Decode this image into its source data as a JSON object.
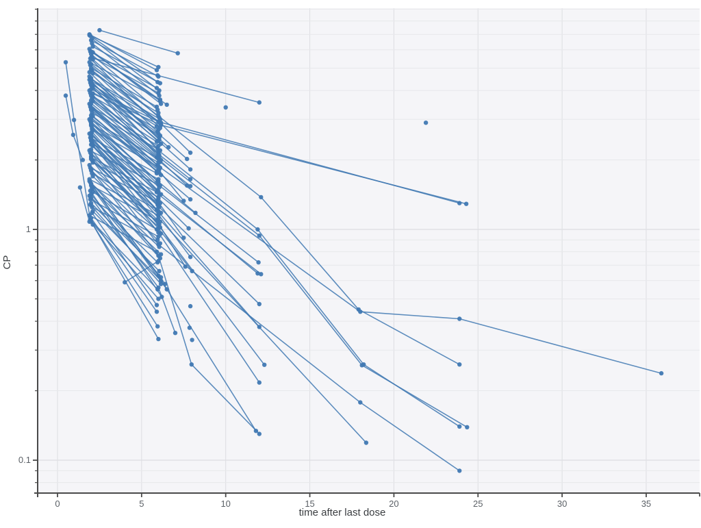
{
  "chart_data": {
    "type": "line",
    "title": "",
    "xlabel": "time after last dose",
    "ylabel": "CP",
    "x_axis": {
      "ticks": [
        0,
        5,
        10,
        15,
        20,
        25,
        30,
        35
      ],
      "tick_labels": [
        "0",
        "5",
        "10",
        "15",
        "20",
        "25",
        "30",
        "35"
      ],
      "range": [
        -1.2,
        38.1
      ],
      "grid": true
    },
    "y_axis": {
      "scale": "log",
      "major_ticks": [
        1,
        0.1
      ],
      "major_tick_labels": [
        "1",
        "0.1"
      ],
      "minor_ticks": [
        9,
        8,
        7,
        6,
        5,
        4,
        3,
        2,
        0.9,
        0.8,
        0.7,
        0.6,
        0.5,
        0.4,
        0.3,
        0.2,
        0.09,
        0.08
      ],
      "range": [
        0.072,
        9.1
      ],
      "grid": true
    },
    "style": {
      "series_color": "#4179b3",
      "plot_background": "#f5f5f8",
      "grid_minor_color": "#e7e8eb",
      "grid_major_color": "#dddee2",
      "axis_color": "#4a4a4a",
      "tick_label_color": "#5b6066",
      "axis_title_color": "#3a3d40"
    },
    "legend": null,
    "series": [
      [
        [
          1.9,
          7.0
        ],
        [
          5.9,
          4.9
        ]
      ],
      [
        [
          1.95,
          6.9
        ],
        [
          5.95,
          4.35
        ]
      ],
      [
        [
          2.0,
          6.6
        ],
        [
          6.0,
          4.6
        ]
      ],
      [
        [
          2.05,
          6.4
        ],
        [
          6.05,
          3.8
        ]
      ],
      [
        [
          2.1,
          6.2
        ],
        [
          6.1,
          4.3
        ]
      ],
      [
        [
          1.9,
          6.05
        ],
        [
          6.15,
          3.5
        ]
      ],
      [
        [
          1.95,
          5.9
        ],
        [
          5.9,
          4.1
        ]
      ],
      [
        [
          2.0,
          5.75
        ],
        [
          5.95,
          3.3
        ]
      ],
      [
        [
          2.05,
          5.6
        ],
        [
          6.0,
          3.9
        ]
      ],
      [
        [
          2.1,
          5.45
        ],
        [
          6.05,
          3.05
        ]
      ],
      [
        [
          1.9,
          5.3
        ],
        [
          6.1,
          3.65
        ]
      ],
      [
        [
          1.95,
          5.15
        ],
        [
          6.15,
          2.85
        ]
      ],
      [
        [
          2.0,
          5.0
        ],
        [
          5.9,
          3.4
        ]
      ],
      [
        [
          2.05,
          4.9
        ],
        [
          5.95,
          2.65
        ]
      ],
      [
        [
          2.1,
          4.75
        ],
        [
          6.0,
          3.2
        ]
      ],
      [
        [
          1.9,
          4.6
        ],
        [
          6.05,
          2.5
        ]
      ],
      [
        [
          1.95,
          4.5
        ],
        [
          6.1,
          3.0
        ]
      ],
      [
        [
          2.0,
          4.35
        ],
        [
          6.15,
          2.35
        ]
      ],
      [
        [
          2.05,
          4.25
        ],
        [
          5.9,
          2.8
        ]
      ],
      [
        [
          2.1,
          4.1
        ],
        [
          5.95,
          2.25
        ]
      ],
      [
        [
          1.9,
          4.0
        ],
        [
          6.0,
          2.7
        ]
      ],
      [
        [
          1.95,
          3.9
        ],
        [
          6.05,
          2.1
        ]
      ],
      [
        [
          2.0,
          3.8
        ],
        [
          6.1,
          2.55
        ]
      ],
      [
        [
          2.05,
          3.7
        ],
        [
          6.15,
          2.0
        ]
      ],
      [
        [
          2.1,
          3.6
        ],
        [
          5.9,
          2.4
        ]
      ],
      [
        [
          1.9,
          3.5
        ],
        [
          5.95,
          1.9
        ]
      ],
      [
        [
          1.95,
          3.4
        ],
        [
          6.0,
          2.3
        ]
      ],
      [
        [
          2.0,
          3.3
        ],
        [
          6.05,
          1.82
        ]
      ],
      [
        [
          2.05,
          3.2
        ],
        [
          6.1,
          2.2
        ]
      ],
      [
        [
          2.1,
          3.1
        ],
        [
          6.15,
          1.72
        ]
      ],
      [
        [
          1.9,
          3.0
        ],
        [
          5.9,
          2.05
        ]
      ],
      [
        [
          1.95,
          2.95
        ],
        [
          5.95,
          1.62
        ]
      ],
      [
        [
          2.0,
          2.85
        ],
        [
          6.0,
          1.95
        ]
      ],
      [
        [
          2.05,
          2.75
        ],
        [
          6.05,
          1.52
        ]
      ],
      [
        [
          2.1,
          2.7
        ],
        [
          6.1,
          1.85
        ]
      ],
      [
        [
          1.9,
          2.6
        ],
        [
          6.15,
          1.42
        ]
      ],
      [
        [
          1.95,
          2.5
        ],
        [
          5.9,
          1.75
        ]
      ],
      [
        [
          2.0,
          2.45
        ],
        [
          5.95,
          1.33
        ]
      ],
      [
        [
          2.05,
          2.35
        ],
        [
          6.0,
          1.65
        ]
      ],
      [
        [
          2.1,
          2.3
        ],
        [
          6.05,
          1.25
        ]
      ],
      [
        [
          1.9,
          2.2
        ],
        [
          6.1,
          1.55
        ]
      ],
      [
        [
          1.95,
          2.15
        ],
        [
          6.15,
          1.18
        ]
      ],
      [
        [
          2.0,
          2.05
        ],
        [
          5.9,
          1.45
        ]
      ],
      [
        [
          2.05,
          2.0
        ],
        [
          5.95,
          1.1
        ]
      ],
      [
        [
          2.1,
          1.95
        ],
        [
          6.0,
          1.38
        ]
      ],
      [
        [
          1.9,
          1.9
        ],
        [
          6.05,
          1.02
        ]
      ],
      [
        [
          1.95,
          1.85
        ],
        [
          6.1,
          1.3
        ]
      ],
      [
        [
          2.0,
          1.8
        ],
        [
          6.15,
          0.96
        ]
      ],
      [
        [
          2.05,
          1.75
        ],
        [
          5.9,
          1.22
        ]
      ],
      [
        [
          2.1,
          1.7
        ],
        [
          5.95,
          0.9
        ]
      ],
      [
        [
          1.9,
          1.65
        ],
        [
          6.0,
          1.15
        ]
      ],
      [
        [
          1.95,
          1.6
        ],
        [
          6.05,
          0.84
        ]
      ],
      [
        [
          2.0,
          1.55
        ],
        [
          6.1,
          1.08
        ]
      ],
      [
        [
          2.05,
          1.5
        ],
        [
          6.15,
          0.78
        ]
      ],
      [
        [
          2.1,
          1.45
        ],
        [
          5.9,
          1.0
        ]
      ],
      [
        [
          1.9,
          1.4
        ],
        [
          5.95,
          0.72
        ]
      ],
      [
        [
          1.95,
          1.35
        ],
        [
          6.0,
          0.93
        ]
      ],
      [
        [
          2.0,
          1.3
        ],
        [
          6.05,
          0.66
        ]
      ],
      [
        [
          2.05,
          1.25
        ],
        [
          6.1,
          0.87
        ]
      ],
      [
        [
          2.1,
          1.2
        ],
        [
          6.15,
          0.6
        ]
      ],
      [
        [
          1.9,
          1.15
        ],
        [
          5.9,
          0.8
        ]
      ],
      [
        [
          1.95,
          1.1
        ],
        [
          5.95,
          0.55
        ]
      ],
      [
        [
          2.0,
          1.08
        ],
        [
          6.0,
          0.5
        ]
      ],
      [
        [
          2.05,
          6.7
        ],
        [
          6.05,
          4.0
        ]
      ],
      [
        [
          2.1,
          5.85
        ],
        [
          6.1,
          3.6
        ]
      ],
      [
        [
          1.9,
          4.45
        ],
        [
          6.15,
          2.9
        ]
      ],
      [
        [
          1.95,
          3.45
        ],
        [
          5.9,
          1.78
        ]
      ],
      [
        [
          2.0,
          2.9
        ],
        [
          5.95,
          1.48
        ]
      ],
      [
        [
          2.05,
          2.4
        ],
        [
          6.0,
          1.2
        ]
      ],
      [
        [
          2.1,
          1.98
        ],
        [
          6.05,
          1.05
        ]
      ],
      [
        [
          1.9,
          1.62
        ],
        [
          6.1,
          0.75
        ]
      ],
      [
        [
          1.95,
          1.28
        ],
        [
          6.15,
          0.58
        ]
      ],
      [
        [
          2.0,
          1.12
        ],
        [
          5.9,
          0.44
        ]
      ],
      [
        [
          2.05,
          2.65
        ],
        [
          5.95,
          1.28
        ]
      ],
      [
        [
          2.1,
          3.75
        ],
        [
          6.0,
          2.15
        ]
      ],
      [
        [
          1.9,
          4.8
        ],
        [
          6.05,
          2.45
        ]
      ],
      [
        [
          1.95,
          5.5
        ],
        [
          6.1,
          2.75
        ]
      ],
      [
        [
          2.0,
          1.42
        ],
        [
          6.15,
          0.62
        ]
      ],
      [
        [
          2.05,
          1.18
        ],
        [
          5.9,
          0.47
        ]
      ],
      [
        [
          2.1,
          1.05
        ],
        [
          5.95,
          0.38
        ]
      ],
      [
        [
          1.95,
          1.1
        ],
        [
          6.0,
          0.335
        ]
      ],
      [
        [
          0.49,
          5.3
        ],
        [
          0.98,
          2.98
        ],
        [
          1.95,
          1.1
        ]
      ],
      [
        [
          0.49,
          3.8
        ],
        [
          0.93,
          2.57
        ],
        [
          1.5,
          2.0
        ]
      ],
      [
        [
          1.34,
          1.52
        ],
        [
          1.9,
          1.08
        ]
      ],
      [
        [
          2.5,
          7.3
        ],
        [
          7.15,
          5.8
        ]
      ],
      [
        [
          1.9,
          6.95
        ],
        [
          6.0,
          5.05
        ]
      ],
      [
        [
          2.0,
          5.55
        ],
        [
          5.95,
          4.65
        ],
        [
          12.0,
          3.55
        ]
      ],
      [
        [
          2.0,
          4.05
        ],
        [
          6.0,
          2.93
        ],
        [
          23.9,
          1.3
        ]
      ],
      [
        [
          2.1,
          3.88
        ],
        [
          6.15,
          2.83
        ],
        [
          24.3,
          1.29
        ]
      ],
      [
        [
          2.0,
          5.2
        ],
        [
          6.0,
          3.1
        ],
        [
          12.1,
          1.38
        ],
        [
          17.9,
          0.45
        ],
        [
          23.9,
          0.26
        ]
      ],
      [
        [
          2.0,
          4.4
        ],
        [
          6.0,
          2.2
        ],
        [
          11.9,
          1.0
        ],
        [
          18.2,
          0.26
        ],
        [
          23.9,
          0.14
        ]
      ],
      [
        [
          2.05,
          4.15
        ],
        [
          6.05,
          2.05
        ],
        [
          12.0,
          0.94
        ],
        [
          18.1,
          0.258
        ],
        [
          24.35,
          0.139
        ]
      ],
      [
        [
          2.0,
          3.35
        ],
        [
          6.0,
          1.88
        ],
        [
          18.0,
          0.44
        ],
        [
          23.9,
          0.41
        ],
        [
          35.9,
          0.238
        ]
      ],
      [
        [
          2.0,
          2.42
        ],
        [
          6.0,
          1.12
        ],
        [
          18.35,
          0.119
        ]
      ],
      [
        [
          2.0,
          2.62
        ],
        [
          6.0,
          1.26
        ],
        [
          12.0,
          0.475
        ]
      ],
      [
        [
          2.0,
          2.52
        ],
        [
          6.05,
          1.18
        ],
        [
          12.0,
          0.378
        ]
      ],
      [
        [
          2.0,
          2.22
        ],
        [
          6.0,
          0.97
        ],
        [
          12.0,
          0.217
        ]
      ],
      [
        [
          2.1,
          2.32
        ],
        [
          6.1,
          1.02
        ],
        [
          12.3,
          0.259
        ]
      ],
      [
        [
          2.0,
          1.82
        ],
        [
          6.0,
          0.77
        ],
        [
          7.97,
          0.26
        ],
        [
          12.0,
          0.13
        ]
      ],
      [
        [
          2.0,
          2.02
        ],
        [
          6.0,
          0.86
        ],
        [
          18.0,
          0.178
        ],
        [
          23.9,
          0.09
        ]
      ],
      [
        [
          2.0,
          1.58
        ],
        [
          6.0,
          0.63
        ],
        [
          11.8,
          0.134
        ]
      ],
      [
        [
          2.0,
          3.02
        ],
        [
          6.0,
          1.56
        ],
        [
          11.95,
          0.72
        ]
      ],
      [
        [
          2.0,
          2.82
        ],
        [
          6.0,
          1.46
        ],
        [
          11.9,
          0.645
        ]
      ],
      [
        [
          2.05,
          2.72
        ],
        [
          6.05,
          1.41
        ],
        [
          12.1,
          0.64
        ]
      ],
      [
        [
          2.0,
          5.9
        ],
        [
          6.5,
          3.47
        ]
      ],
      [
        [
          2.0,
          4.52
        ],
        [
          6.6,
          2.27
        ]
      ],
      [
        [
          2.0,
          4.92
        ],
        [
          6.1,
          2.9
        ],
        [
          7.9,
          2.15
        ]
      ],
      [
        [
          1.95,
          4.32
        ],
        [
          6.0,
          2.6
        ],
        [
          7.7,
          2.02
        ]
      ],
      [
        [
          2.0,
          4.22
        ],
        [
          6.0,
          2.42
        ],
        [
          7.9,
          1.82
        ]
      ],
      [
        [
          2.0,
          3.62
        ],
        [
          6.0,
          2.12
        ],
        [
          7.9,
          1.65
        ]
      ],
      [
        [
          2.0,
          3.52
        ],
        [
          6.0,
          2.02
        ],
        [
          7.7,
          1.55
        ]
      ],
      [
        [
          2.1,
          3.32
        ],
        [
          6.1,
          1.96
        ],
        [
          7.9,
          1.54
        ]
      ],
      [
        [
          2.0,
          3.12
        ],
        [
          6.0,
          1.81
        ],
        [
          7.5,
          1.33
        ]
      ],
      [
        [
          2.0,
          3.05
        ],
        [
          6.05,
          1.76
        ],
        [
          7.9,
          1.35
        ]
      ],
      [
        [
          2.0,
          2.88
        ],
        [
          6.0,
          1.61
        ],
        [
          8.2,
          1.18
        ]
      ],
      [
        [
          2.0,
          2.58
        ],
        [
          6.0,
          1.36
        ],
        [
          7.8,
          1.01
        ]
      ],
      [
        [
          2.0,
          2.48
        ],
        [
          6.0,
          1.31
        ],
        [
          7.5,
          0.92
        ]
      ],
      [
        [
          2.0,
          2.33
        ],
        [
          6.0,
          1.16
        ],
        [
          7.9,
          0.76
        ]
      ],
      [
        [
          2.0,
          2.12
        ],
        [
          6.0,
          1.06
        ],
        [
          7.6,
          0.69
        ]
      ],
      [
        [
          2.0,
          2.07
        ],
        [
          6.0,
          1.01
        ],
        [
          8.0,
          0.66
        ]
      ],
      [
        [
          2.0,
          1.37
        ],
        [
          6.0,
          0.56
        ],
        [
          7.0,
          0.356
        ]
      ],
      [
        [
          2.0,
          1.57
        ],
        [
          6.4,
          0.58
        ]
      ],
      [
        [
          2.05,
          1.52
        ],
        [
          6.5,
          0.55
        ]
      ],
      [
        [
          1.95,
          1.47
        ],
        [
          6.2,
          0.51
        ]
      ],
      [
        [
          4.0,
          0.59
        ],
        [
          6.0,
          0.73
        ]
      ],
      [
        [
          10.0,
          3.38
        ]
      ],
      [
        [
          21.9,
          2.9
        ]
      ],
      [
        [
          7.9,
          0.465
        ]
      ],
      [
        [
          7.85,
          0.375
        ]
      ],
      [
        [
          8.0,
          0.332
        ]
      ]
    ]
  }
}
